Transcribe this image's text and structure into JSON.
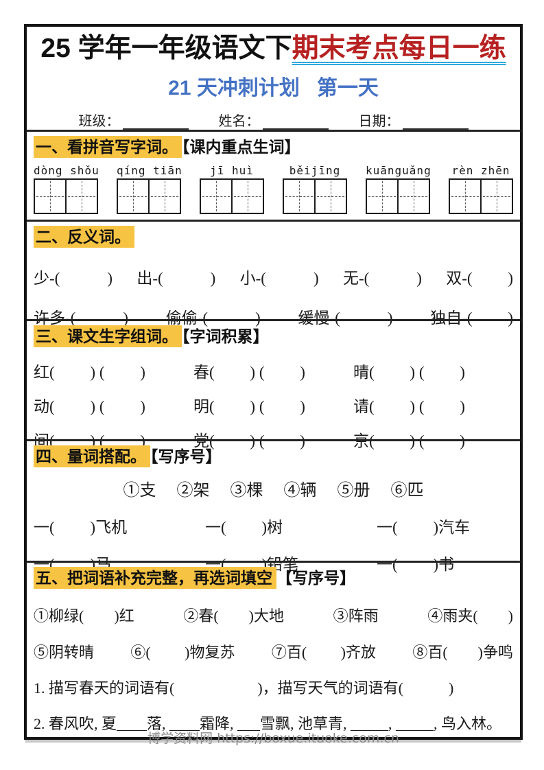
{
  "colors": {
    "highlight_yellow": "#F7C342",
    "title_red": "#B72121",
    "underline_cyan": "#2EAADC",
    "subtitle_blue": "#4472C4"
  },
  "header": {
    "title_black": "25 学年一年级语文下",
    "title_red": "期末考点每日一练",
    "subtitle": "21 天冲刺计划   第一天",
    "class_label": "班级：",
    "name_label": "姓名：",
    "date_label": "日期："
  },
  "s1": {
    "title_hl": "一、看拼音写字词。",
    "title_rest": "【课内重点生词】",
    "pinyin": [
      "dòng shǒu",
      "qíng tiān",
      "jī huì",
      "běijīng",
      "kuānguǎng",
      "rèn zhēn"
    ]
  },
  "s2": {
    "title_hl": "二、反义词。",
    "row1": [
      "少-(            )",
      "出-(            )",
      "小-(            )",
      "无-(            )",
      "双-(         )"
    ],
    "row2": [
      "许多-(            )",
      "偷偷-(            )",
      "缓慢-(            )",
      "独自-(         )"
    ]
  },
  "s3": {
    "title_hl": "三、课文生字组词。",
    "title_rest": "【字词积累】",
    "rows": [
      [
        "红(         ) (         )",
        "春(         ) (         )",
        "晴(         ) (         )"
      ],
      [
        "动(         ) (         )",
        "明(         ) (         )",
        "请(         ) (         )"
      ],
      [
        "间(         ) (         )",
        "党(         ) (         )",
        "京(         ) (         )"
      ]
    ]
  },
  "s4": {
    "title_hl": "四、量词搭配。",
    "title_rest": "【写序号】",
    "options": [
      "①支",
      "②架",
      "③棵",
      "④辆",
      "⑤册",
      "⑥匹"
    ],
    "rows": [
      [
        "一(         )飞机",
        "一(         )树",
        "一(         )汽车"
      ],
      [
        "一(         )马",
        "一(         )铅笔",
        "一(         )书"
      ]
    ]
  },
  "s5": {
    "title_hl": "五、把词语补充完整，再选词填空",
    "title_rest": "【写序号】",
    "row1": [
      "①柳绿(        )红",
      "②春(        )大地",
      "③阵雨",
      "④雨夹(        )"
    ],
    "row2": [
      "⑤阴转晴",
      "⑥(         )物复苏",
      "⑦百(         )齐放",
      "⑧百(        )争鸣"
    ],
    "q1": "1. 描写春天的词语有(                      )，描写天气的词语有(            )",
    "q2": "2. 春风吹, 夏____落, ____霜降, ___雪飘, 池草青, _____, _____, 鸟入林。"
  },
  "footer": "博学资料网 https://boxue.ituoke.com.cn"
}
